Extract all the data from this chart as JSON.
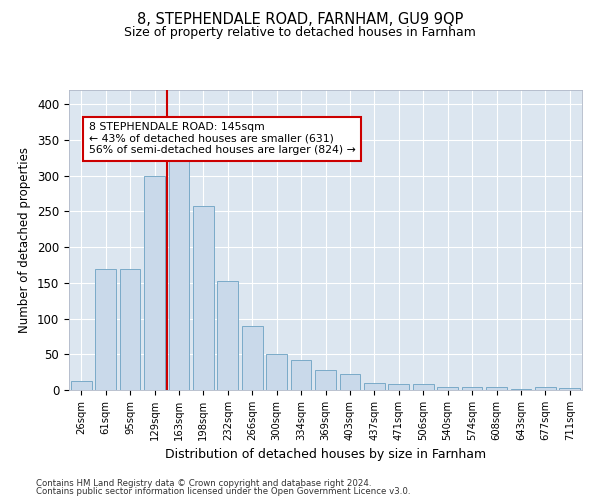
{
  "title1": "8, STEPHENDALE ROAD, FARNHAM, GU9 9QP",
  "title2": "Size of property relative to detached houses in Farnham",
  "xlabel": "Distribution of detached houses by size in Farnham",
  "ylabel": "Number of detached properties",
  "categories": [
    "26sqm",
    "61sqm",
    "95sqm",
    "129sqm",
    "163sqm",
    "198sqm",
    "232sqm",
    "266sqm",
    "300sqm",
    "334sqm",
    "369sqm",
    "403sqm",
    "437sqm",
    "471sqm",
    "506sqm",
    "540sqm",
    "574sqm",
    "608sqm",
    "643sqm",
    "677sqm",
    "711sqm"
  ],
  "values": [
    12,
    170,
    170,
    300,
    325,
    258,
    152,
    90,
    50,
    42,
    28,
    22,
    10,
    9,
    9,
    4,
    4,
    4,
    2,
    4,
    3
  ],
  "bar_color": "#c9d9ea",
  "bar_edge_color": "#7aaac8",
  "vline_color": "#cc0000",
  "annotation_text": "8 STEPHENDALE ROAD: 145sqm\n← 43% of detached houses are smaller (631)\n56% of semi-detached houses are larger (824) →",
  "annotation_box_color": "#ffffff",
  "annotation_box_edge_color": "#cc0000",
  "ylim": [
    0,
    420
  ],
  "background_color": "#dce6f0",
  "grid_color": "#ffffff",
  "footer1": "Contains HM Land Registry data © Crown copyright and database right 2024.",
  "footer2": "Contains public sector information licensed under the Open Government Licence v3.0."
}
